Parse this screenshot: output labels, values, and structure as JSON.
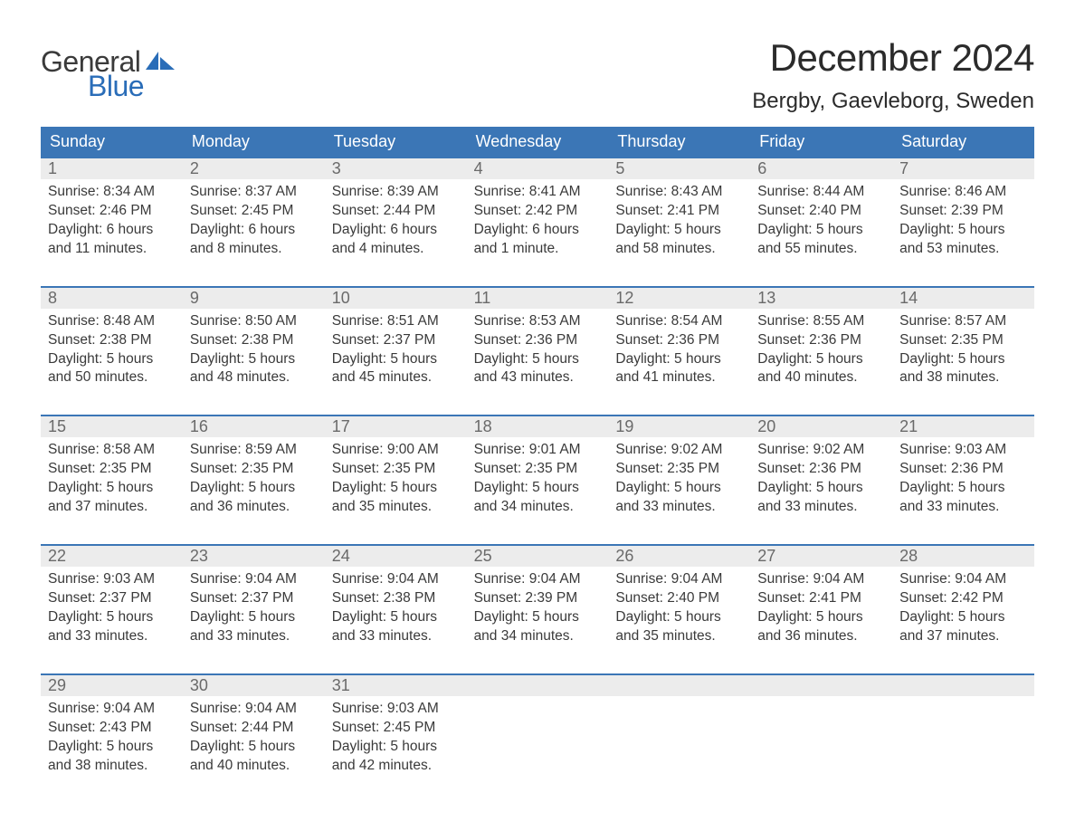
{
  "logo": {
    "text_general": "General",
    "text_blue": "Blue"
  },
  "title": "December 2024",
  "location": "Bergby, Gaevleborg, Sweden",
  "colors": {
    "header_bg": "#3b76b6",
    "header_text": "#ffffff",
    "week_border": "#3b76b6",
    "daynum_bg": "#ececec",
    "daynum_text": "#6a6a6a",
    "body_text": "#3a3a3a",
    "logo_blue": "#2a6db8",
    "logo_gray": "#3a3a3a",
    "page_bg": "#ffffff"
  },
  "weekdays": [
    "Sunday",
    "Monday",
    "Tuesday",
    "Wednesday",
    "Thursday",
    "Friday",
    "Saturday"
  ],
  "weeks": [
    [
      {
        "n": "1",
        "sunrise": "8:34 AM",
        "sunset": "2:46 PM",
        "daylight": "6 hours and 11 minutes."
      },
      {
        "n": "2",
        "sunrise": "8:37 AM",
        "sunset": "2:45 PM",
        "daylight": "6 hours and 8 minutes."
      },
      {
        "n": "3",
        "sunrise": "8:39 AM",
        "sunset": "2:44 PM",
        "daylight": "6 hours and 4 minutes."
      },
      {
        "n": "4",
        "sunrise": "8:41 AM",
        "sunset": "2:42 PM",
        "daylight": "6 hours and 1 minute."
      },
      {
        "n": "5",
        "sunrise": "8:43 AM",
        "sunset": "2:41 PM",
        "daylight": "5 hours and 58 minutes."
      },
      {
        "n": "6",
        "sunrise": "8:44 AM",
        "sunset": "2:40 PM",
        "daylight": "5 hours and 55 minutes."
      },
      {
        "n": "7",
        "sunrise": "8:46 AM",
        "sunset": "2:39 PM",
        "daylight": "5 hours and 53 minutes."
      }
    ],
    [
      {
        "n": "8",
        "sunrise": "8:48 AM",
        "sunset": "2:38 PM",
        "daylight": "5 hours and 50 minutes."
      },
      {
        "n": "9",
        "sunrise": "8:50 AM",
        "sunset": "2:38 PM",
        "daylight": "5 hours and 48 minutes."
      },
      {
        "n": "10",
        "sunrise": "8:51 AM",
        "sunset": "2:37 PM",
        "daylight": "5 hours and 45 minutes."
      },
      {
        "n": "11",
        "sunrise": "8:53 AM",
        "sunset": "2:36 PM",
        "daylight": "5 hours and 43 minutes."
      },
      {
        "n": "12",
        "sunrise": "8:54 AM",
        "sunset": "2:36 PM",
        "daylight": "5 hours and 41 minutes."
      },
      {
        "n": "13",
        "sunrise": "8:55 AM",
        "sunset": "2:36 PM",
        "daylight": "5 hours and 40 minutes."
      },
      {
        "n": "14",
        "sunrise": "8:57 AM",
        "sunset": "2:35 PM",
        "daylight": "5 hours and 38 minutes."
      }
    ],
    [
      {
        "n": "15",
        "sunrise": "8:58 AM",
        "sunset": "2:35 PM",
        "daylight": "5 hours and 37 minutes."
      },
      {
        "n": "16",
        "sunrise": "8:59 AM",
        "sunset": "2:35 PM",
        "daylight": "5 hours and 36 minutes."
      },
      {
        "n": "17",
        "sunrise": "9:00 AM",
        "sunset": "2:35 PM",
        "daylight": "5 hours and 35 minutes."
      },
      {
        "n": "18",
        "sunrise": "9:01 AM",
        "sunset": "2:35 PM",
        "daylight": "5 hours and 34 minutes."
      },
      {
        "n": "19",
        "sunrise": "9:02 AM",
        "sunset": "2:35 PM",
        "daylight": "5 hours and 33 minutes."
      },
      {
        "n": "20",
        "sunrise": "9:02 AM",
        "sunset": "2:36 PM",
        "daylight": "5 hours and 33 minutes."
      },
      {
        "n": "21",
        "sunrise": "9:03 AM",
        "sunset": "2:36 PM",
        "daylight": "5 hours and 33 minutes."
      }
    ],
    [
      {
        "n": "22",
        "sunrise": "9:03 AM",
        "sunset": "2:37 PM",
        "daylight": "5 hours and 33 minutes."
      },
      {
        "n": "23",
        "sunrise": "9:04 AM",
        "sunset": "2:37 PM",
        "daylight": "5 hours and 33 minutes."
      },
      {
        "n": "24",
        "sunrise": "9:04 AM",
        "sunset": "2:38 PM",
        "daylight": "5 hours and 33 minutes."
      },
      {
        "n": "25",
        "sunrise": "9:04 AM",
        "sunset": "2:39 PM",
        "daylight": "5 hours and 34 minutes."
      },
      {
        "n": "26",
        "sunrise": "9:04 AM",
        "sunset": "2:40 PM",
        "daylight": "5 hours and 35 minutes."
      },
      {
        "n": "27",
        "sunrise": "9:04 AM",
        "sunset": "2:41 PM",
        "daylight": "5 hours and 36 minutes."
      },
      {
        "n": "28",
        "sunrise": "9:04 AM",
        "sunset": "2:42 PM",
        "daylight": "5 hours and 37 minutes."
      }
    ],
    [
      {
        "n": "29",
        "sunrise": "9:04 AM",
        "sunset": "2:43 PM",
        "daylight": "5 hours and 38 minutes."
      },
      {
        "n": "30",
        "sunrise": "9:04 AM",
        "sunset": "2:44 PM",
        "daylight": "5 hours and 40 minutes."
      },
      {
        "n": "31",
        "sunrise": "9:03 AM",
        "sunset": "2:45 PM",
        "daylight": "5 hours and 42 minutes."
      },
      null,
      null,
      null,
      null
    ]
  ],
  "labels": {
    "sunrise": "Sunrise:",
    "sunset": "Sunset:",
    "daylight": "Daylight:"
  }
}
